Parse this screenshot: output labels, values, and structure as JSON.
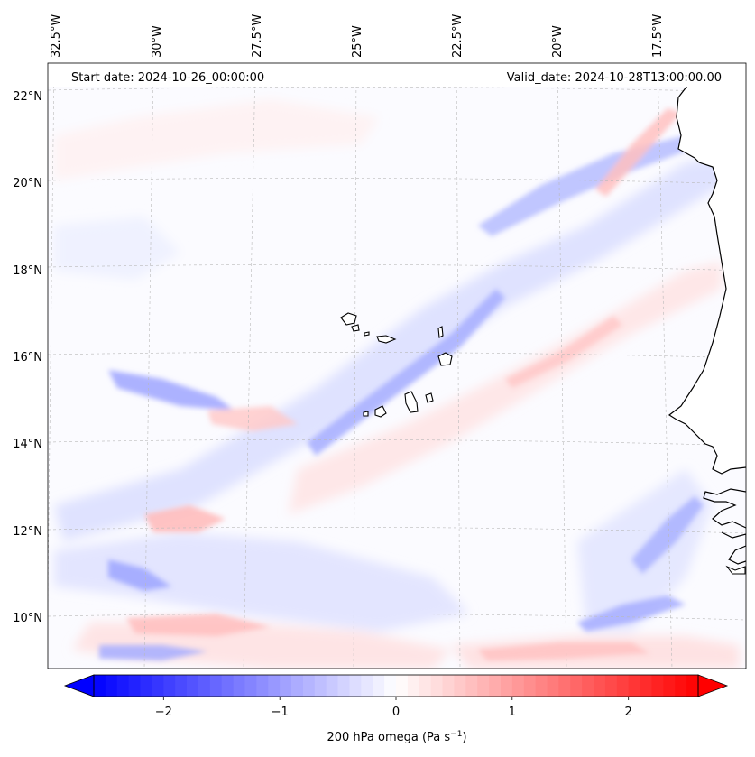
{
  "header": {
    "start_date": "Start date: 2024-10-26_00:00:00",
    "valid_date": "Valid_date: 2024-10-28T13:00:00.00"
  },
  "axes": {
    "lon_labels": [
      "32.5°W",
      "30°W",
      "27.5°W",
      "25°W",
      "22.5°W",
      "20°W",
      "17.5°W"
    ],
    "lat_labels": [
      "22°N",
      "20°N",
      "18°N",
      "16°N",
      "14°N",
      "12°N",
      "10°N"
    ],
    "grid": true
  },
  "colorbar": {
    "label_main": "200 hPa omega (Pa s",
    "label_exp": "−1",
    "label_close": ")",
    "ticks": [
      "−2",
      "−1",
      "0",
      "1",
      "2"
    ],
    "tick_values": [
      -2,
      -1,
      0,
      1,
      2
    ],
    "range": [
      -2.6,
      2.6
    ],
    "levels": 52,
    "extend": "both",
    "colormap": "bwr",
    "low_color": "#0000ff",
    "mid_color": "#ffffff",
    "high_color": "#ff0000"
  },
  "map": {
    "projection": "Lambert conformal",
    "lon_range": [
      -33,
      -16
    ],
    "lat_range": [
      8.8,
      22.8
    ],
    "coastline_color": "#000000",
    "land_fill": "#ffffff"
  }
}
